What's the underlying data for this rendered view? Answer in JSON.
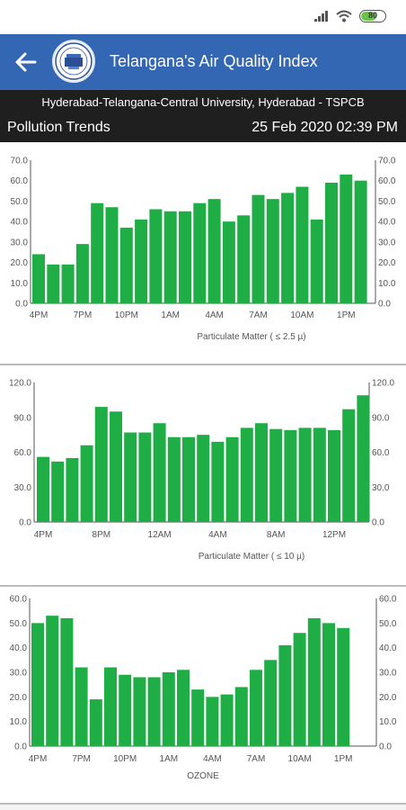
{
  "colors": {
    "app_bar": "#3366b3",
    "bar": "#1fad45",
    "dark_header": "#1f1f1f"
  },
  "status_bar": {
    "battery": "80",
    "icons": [
      "signal-icon",
      "wifi-icon",
      "battery-icon"
    ]
  },
  "app_bar": {
    "title": "Telangana's Air Quality Index",
    "back_icon": "arrow-left-icon",
    "logo": "tspcb-logo"
  },
  "station": "Hyderabad-Telangana-Central University, Hyderabad - TSPCB",
  "trends": {
    "title": "Pollution Trends",
    "timestamp": "25 Feb 2020 02:39 PM"
  },
  "chart_data": [
    {
      "type": "bar",
      "title": "Particulate Matter ( ≤ 2.5 µ)",
      "x_ticks": [
        "4PM",
        "7PM",
        "10PM",
        "1AM",
        "4AM",
        "7AM",
        "10AM",
        "1PM"
      ],
      "values": [
        24,
        19,
        19,
        29,
        49,
        47,
        37,
        41,
        46,
        45,
        45,
        49,
        51,
        40,
        43,
        53,
        51,
        54,
        57,
        41,
        59,
        63,
        60
      ],
      "y_ticks": [
        "0.0",
        "10.0",
        "20.0",
        "30.0",
        "40.0",
        "50.0",
        "60.0",
        "70.0"
      ],
      "ylim": [
        0,
        70
      ],
      "grid": false
    },
    {
      "type": "bar",
      "title": "Particulate Matter ( ≤ 10 µ)",
      "x_ticks": [
        "4PM",
        "8PM",
        "12AM",
        "4AM",
        "8AM",
        "12PM"
      ],
      "values": [
        56,
        52,
        55,
        66,
        99,
        95,
        77,
        77,
        85,
        73,
        73,
        75,
        69,
        73,
        81,
        85,
        80,
        79,
        81,
        81,
        79,
        97,
        109
      ],
      "y_ticks": [
        "0.0",
        "30.0",
        "60.0",
        "90.0",
        "120.0"
      ],
      "ylim": [
        0,
        120
      ],
      "grid": false
    },
    {
      "type": "bar",
      "title": "OZONE",
      "x_ticks": [
        "4PM",
        "7PM",
        "10PM",
        "1AM",
        "4AM",
        "7AM",
        "10AM",
        "1PM"
      ],
      "values": [
        50,
        53,
        52,
        32,
        19,
        32,
        29,
        28,
        28,
        30,
        31,
        23,
        20,
        21,
        24,
        31,
        35,
        41,
        46,
        52,
        50,
        48
      ],
      "y_ticks": [
        "0.0",
        "10.0",
        "20.0",
        "30.0",
        "40.0",
        "50.0",
        "60.0"
      ],
      "ylim": [
        0,
        60
      ],
      "grid": false
    }
  ]
}
